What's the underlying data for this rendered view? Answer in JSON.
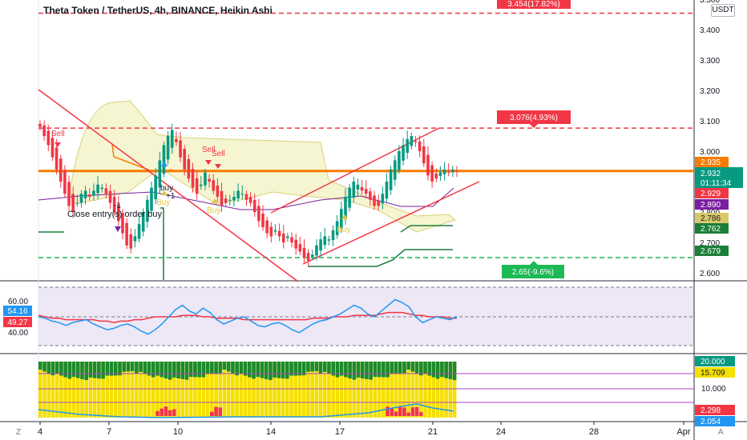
{
  "header": {
    "title": "Theta Token / TetherUS, 4h, BINANCE, Heikin Ashi",
    "currency": "USDT"
  },
  "price_axis": {
    "labels": [
      "3.500",
      "3.400",
      "3.300",
      "3.200",
      "3.100",
      "3.000",
      "2.900",
      "2.800",
      "2.700",
      "2.600"
    ],
    "badges": [
      {
        "text": "2.935",
        "color": "#f57c00",
        "value": 2.935
      },
      {
        "text": "2.932",
        "sub": "01:11:34",
        "color": "#089981",
        "value": 2.932
      },
      {
        "text": "2.929",
        "color": "#f23645",
        "value": 2.929
      },
      {
        "text": "2.890",
        "color": "#7b1fa2",
        "value": 2.89
      },
      {
        "text": "2.786",
        "color": "#d8c86a",
        "value": 2.786
      },
      {
        "text": "2.762",
        "color": "#1b7f3a",
        "value": 2.762
      },
      {
        "text": "2.679",
        "color": "#1b7f3a",
        "value": 2.679
      }
    ]
  },
  "annotations": {
    "target_top": {
      "text": "3.454(17.82%)",
      "value": 3.454,
      "color": "#f23645"
    },
    "target_mid": {
      "text": "3.076(4.93%)",
      "value": 3.076,
      "color": "#f23645"
    },
    "stop": {
      "text": "2.65(-9.6%)",
      "value": 2.65,
      "color": "#1db954"
    },
    "sell_1": "Sell",
    "sell_2": "Sell",
    "sell_3": "Sell",
    "buy_1": "buy",
    "buy_2": "Buy",
    "buy_3": "Buy",
    "buy_4": "Buy",
    "minus_one": "-1",
    "plus_one": "+1",
    "close_entry": "Close entry(s) order buy"
  },
  "rsi_panel": {
    "axis_labels": [
      "60.00",
      "40.00"
    ],
    "badges": [
      {
        "text": "54.16",
        "color": "#2196f3"
      },
      {
        "text": "49.27",
        "color": "#f23645"
      }
    ]
  },
  "volume_panel": {
    "axis_labels": [
      "10.000"
    ],
    "badges": [
      {
        "text": "20.000",
        "color": "#089981"
      },
      {
        "text": "15.709",
        "color": "#f5e000"
      },
      {
        "text": "2.298",
        "color": "#f23645"
      },
      {
        "text": "2.054",
        "color": "#2196f3"
      }
    ]
  },
  "time_axis": {
    "labels": [
      "4",
      "7",
      "10",
      "14",
      "17",
      "21",
      "24",
      "28",
      "Apr"
    ],
    "tz_button": "Z",
    "auto_button": "A"
  },
  "chart_data": {
    "type": "candlestick",
    "title": "Theta Token / TetherUS, 4h, BINANCE, Heikin Ashi",
    "ylim": [
      2.57,
      3.52
    ],
    "horizontal_lines": [
      3.454,
      3.076,
      2.935,
      2.65
    ],
    "closes": [
      3.08,
      3.05,
      3.02,
      2.98,
      2.94,
      2.9,
      2.86,
      2.82,
      2.8,
      2.83,
      2.86,
      2.87,
      2.85,
      2.87,
      2.89,
      2.88,
      2.86,
      2.83,
      2.8,
      2.77,
      2.73,
      2.69,
      2.68,
      2.72,
      2.76,
      2.8,
      2.84,
      2.88,
      2.92,
      2.97,
      3.02,
      3.05,
      3.07,
      3.03,
      2.98,
      2.94,
      2.91,
      2.88,
      2.86,
      2.89,
      2.93,
      2.9,
      2.87,
      2.85,
      2.82,
      2.83,
      2.84,
      2.85,
      2.87,
      2.86,
      2.84,
      2.83,
      2.8,
      2.77,
      2.75,
      2.73,
      2.72,
      2.74,
      2.72,
      2.7,
      2.72,
      2.7,
      2.68,
      2.67,
      2.65,
      2.64,
      2.66,
      2.69,
      2.71,
      2.72,
      2.71,
      2.74,
      2.77,
      2.81,
      2.85,
      2.88,
      2.9,
      2.89,
      2.87,
      2.86,
      2.84,
      2.82,
      2.82,
      2.86,
      2.9,
      2.94,
      2.97,
      3.0,
      3.02,
      3.04,
      3.05,
      3.03,
      3.0,
      2.96,
      2.92,
      2.9,
      2.91,
      2.93,
      2.94,
      2.93,
      2.94,
      2.935
    ]
  }
}
